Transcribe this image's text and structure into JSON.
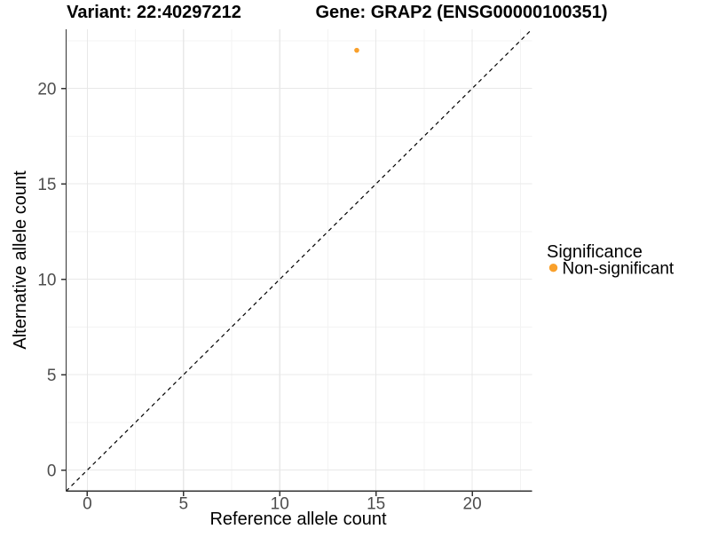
{
  "chart_data": {
    "type": "scatter",
    "title_left": "Variant: 22:40297212",
    "title_right": "Gene: GRAP2 (ENSG00000100351)",
    "xlabel": "Reference allele count",
    "ylabel": "Alternative allele count",
    "xlim": [
      -1.1,
      23.1
    ],
    "ylim": [
      -1.1,
      23.1
    ],
    "x_major_ticks": [
      0,
      5,
      10,
      15,
      20
    ],
    "y_major_ticks": [
      0,
      5,
      10,
      15,
      20
    ],
    "x_minor_ticks": [
      2.5,
      7.5,
      12.5,
      17.5,
      22.5
    ],
    "y_minor_ticks": [
      2.5,
      7.5,
      12.5,
      17.5,
      22.5
    ],
    "grid": "major+minor",
    "identity_line": {
      "style": "dashed",
      "slope": 1,
      "intercept": 0,
      "color": "#000000"
    },
    "points": [
      {
        "x": 14,
        "y": 22,
        "series": "Non-significant"
      }
    ],
    "legend": {
      "title": "Significance",
      "position": "right",
      "items": [
        {
          "label": "Non-significant",
          "color": "#F9A02B"
        }
      ]
    },
    "colors": {
      "point": "#F9A02B",
      "grid_major": "#E8E8E8",
      "grid_minor": "#F3F3F3",
      "axis": "#333333",
      "tick_label": "#4D4D4D",
      "background": "#FFFFFF"
    }
  }
}
